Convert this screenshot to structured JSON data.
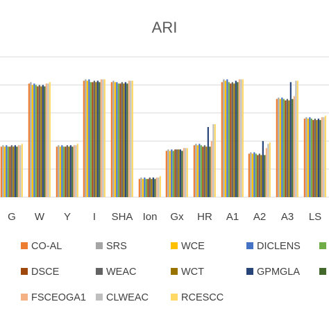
{
  "chart_data": {
    "type": "bar",
    "title": "ARI",
    "xlabel": "",
    "ylabel": "",
    "ylim": [
      0,
      1
    ],
    "grid": true,
    "legend_position": "bottom",
    "categories": [
      "G",
      "W",
      "Y",
      "I",
      "SHA",
      "Ion",
      "Gx",
      "HR",
      "A1",
      "A2",
      "A3",
      "LS"
    ],
    "series": [
      {
        "name": "CO-AL",
        "color": "#ED7D31",
        "values": [
          0.36,
          0.81,
          0.36,
          0.83,
          0.82,
          0.13,
          0.33,
          0.37,
          0.82,
          0.31,
          0.7,
          0.56
        ]
      },
      {
        "name": "SRS",
        "color": "#A5A5A5",
        "values": [
          0.37,
          0.82,
          0.37,
          0.84,
          0.83,
          0.14,
          0.34,
          0.38,
          0.84,
          0.32,
          0.71,
          0.57
        ]
      },
      {
        "name": "WCE",
        "color": "#FFC000",
        "values": [
          0.36,
          0.8,
          0.36,
          0.83,
          0.82,
          0.13,
          0.33,
          0.37,
          0.83,
          0.31,
          0.7,
          0.56
        ]
      },
      {
        "name": "DICLENS",
        "color": "#4472C4",
        "values": [
          0.37,
          0.81,
          0.37,
          0.84,
          0.82,
          0.14,
          0.34,
          0.38,
          0.84,
          0.32,
          0.71,
          0.57
        ]
      },
      {
        "name": "",
        "color": "#70AD47",
        "values": [
          0.36,
          0.8,
          0.36,
          0.82,
          0.81,
          0.13,
          0.33,
          0.37,
          0.82,
          0.31,
          0.7,
          0.56
        ]
      },
      {
        "name": "DSCE",
        "color": "#9E480E",
        "values": [
          0.36,
          0.79,
          0.36,
          0.82,
          0.81,
          0.13,
          0.34,
          0.36,
          0.81,
          0.3,
          0.69,
          0.55
        ]
      },
      {
        "name": "WEAC",
        "color": "#636363",
        "values": [
          0.37,
          0.8,
          0.37,
          0.83,
          0.82,
          0.14,
          0.34,
          0.37,
          0.82,
          0.31,
          0.7,
          0.56
        ]
      },
      {
        "name": "WCT",
        "color": "#997300",
        "values": [
          0.36,
          0.79,
          0.36,
          0.82,
          0.81,
          0.13,
          0.34,
          0.36,
          0.81,
          0.3,
          0.69,
          0.55
        ]
      },
      {
        "name": "GPMGLA",
        "color": "#264478",
        "values": [
          0.37,
          0.8,
          0.37,
          0.83,
          0.82,
          0.14,
          0.34,
          0.5,
          0.83,
          0.4,
          0.82,
          0.56
        ]
      },
      {
        "name": "",
        "color": "#43682B",
        "values": [
          0.36,
          0.79,
          0.36,
          0.82,
          0.81,
          0.13,
          0.33,
          0.36,
          0.82,
          0.3,
          0.7,
          0.55
        ]
      },
      {
        "name": "FSCEOGA1",
        "color": "#F4B183",
        "values": [
          0.37,
          0.81,
          0.37,
          0.84,
          0.83,
          0.14,
          0.35,
          0.4,
          0.84,
          0.35,
          0.72,
          0.57
        ]
      },
      {
        "name": "CLWEAC",
        "color": "#BFBFBF",
        "values": [
          0.37,
          0.81,
          0.37,
          0.84,
          0.83,
          0.14,
          0.35,
          0.52,
          0.84,
          0.38,
          0.83,
          0.57
        ]
      },
      {
        "name": "RCESCC",
        "color": "#FFD966",
        "values": [
          0.38,
          0.82,
          0.38,
          0.84,
          0.83,
          0.15,
          0.35,
          0.52,
          0.84,
          0.39,
          0.83,
          0.58
        ]
      }
    ]
  }
}
